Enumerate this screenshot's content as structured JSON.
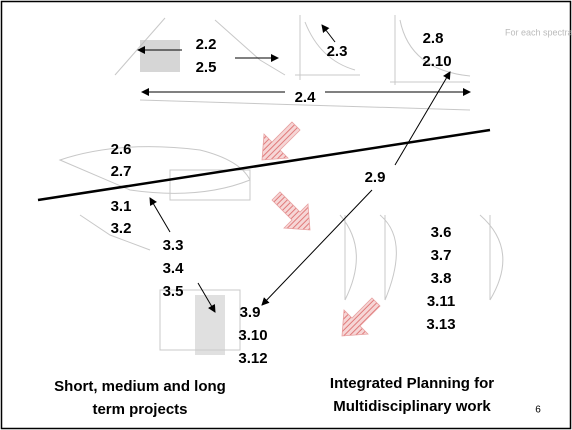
{
  "annotation": "For each spectral frequency",
  "labels": {
    "l22": "2.2",
    "l25": "2.5",
    "l23": "2.3",
    "l28": "2.8",
    "l210": "2.10",
    "l24": "2.4",
    "l26": "2.6",
    "l27": "2.7",
    "l29": "2.9",
    "l31": "3.1",
    "l32": "3.2",
    "l33": "3.3",
    "l34": "3.4",
    "l35": "3.5",
    "l36": "3.6",
    "l37": "3.7",
    "l38": "3.8",
    "l311": "3.11",
    "l313": "3.13",
    "l39": "3.9",
    "l310": "3.10",
    "l312": "3.12"
  },
  "bottom_left": [
    "Short, medium and long",
    "term projects"
  ],
  "bottom_right": [
    "Integrated Planning for",
    "Multidisciplinary work"
  ],
  "page_number": "6"
}
